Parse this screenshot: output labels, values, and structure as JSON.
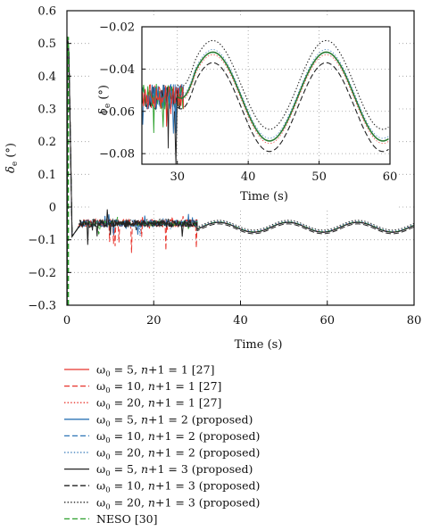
{
  "chart_data": [
    {
      "type": "line",
      "xlabel": "Time (s)",
      "ylabel_main": "δ",
      "ylabel_sub": "e",
      "ylabel_unit": "(°)",
      "xlim": [
        0,
        80
      ],
      "ylim": [
        -0.3,
        0.6
      ],
      "x_ticks": [
        0,
        20,
        40,
        60,
        80
      ],
      "y_ticks": [
        -0.3,
        -0.2,
        -0.1,
        0,
        0.1,
        0.2,
        0.3,
        0.4,
        0.5,
        0.6
      ],
      "x_tick_labels": [
        "0",
        "20",
        "40",
        "60",
        "80"
      ],
      "y_tick_labels": [
        "−0.3",
        "−0.2",
        "−0.1",
        "0",
        "0.1",
        "0.2",
        "0.3",
        "0.4",
        "0.5",
        "0.6"
      ],
      "grid": true,
      "transient_peak": 0.52,
      "steady_value_before_30s": -0.05,
      "sine_amplitude": 0.015,
      "sine_center": -0.06,
      "sine_period": 16,
      "sine_peak_times": [
        35,
        51,
        67
      ]
    },
    {
      "type": "line",
      "inset": true,
      "xlabel": "Time (s)",
      "ylabel_main": "δ",
      "ylabel_sub": "e",
      "ylabel_unit": "(°)",
      "xlim": [
        25,
        60
      ],
      "ylim": [
        -0.085,
        -0.02
      ],
      "x_ticks": [
        30,
        40,
        50,
        60
      ],
      "y_ticks": [
        -0.08,
        -0.06,
        -0.04,
        -0.02
      ],
      "x_tick_labels": [
        "30",
        "40",
        "50",
        "60"
      ],
      "y_tick_labels": [
        "−0.08",
        "−0.06",
        "−0.04",
        "−0.02"
      ],
      "grid": true,
      "curves": [
        {
          "style": "dotted",
          "center": -0.0475,
          "amplitude": 0.021
        },
        {
          "style": "solid",
          "center": -0.053,
          "amplitude": 0.021
        },
        {
          "style": "dashed",
          "center": -0.058,
          "amplitude": 0.021
        }
      ]
    }
  ],
  "legend": [
    {
      "w": "ω",
      "sub": "0",
      "text": " = 5, ",
      "n": "n",
      "rest": "+1 = 1 [27]",
      "color": "#e8342c",
      "dash": "solid"
    },
    {
      "w": "ω",
      "sub": "0",
      "text": " = 10, ",
      "n": "n",
      "rest": "+1 = 1 [27]",
      "color": "#e8342c",
      "dash": "dashed"
    },
    {
      "w": "ω",
      "sub": "0",
      "text": " = 20, ",
      "n": "n",
      "rest": "+1 = 1 [27]",
      "color": "#e8342c",
      "dash": "dotted"
    },
    {
      "w": "ω",
      "sub": "0",
      "text": " = 5, ",
      "n": "n",
      "rest": "+1 = 2 (proposed)",
      "color": "#2e75b6",
      "dash": "solid"
    },
    {
      "w": "ω",
      "sub": "0",
      "text": " = 10, ",
      "n": "n",
      "rest": "+1 = 2 (proposed)",
      "color": "#2e75b6",
      "dash": "dashed"
    },
    {
      "w": "ω",
      "sub": "0",
      "text": " = 20, ",
      "n": "n",
      "rest": "+1 = 2 (proposed)",
      "color": "#2e75b6",
      "dash": "dotted"
    },
    {
      "w": "ω",
      "sub": "0",
      "text": " = 5, ",
      "n": "n",
      "rest": "+1 = 3 (proposed)",
      "color": "#222222",
      "dash": "solid"
    },
    {
      "w": "ω",
      "sub": "0",
      "text": " = 10, ",
      "n": "n",
      "rest": "+1 = 3 (proposed)",
      "color": "#222222",
      "dash": "dashed"
    },
    {
      "w": "ω",
      "sub": "0",
      "text": " = 20, ",
      "n": "n",
      "rest": "+1 = 3 (proposed)",
      "color": "#222222",
      "dash": "dotted"
    },
    {
      "plain": "NESO [30]",
      "color": "#2ca02c",
      "dash": "dashed"
    }
  ]
}
